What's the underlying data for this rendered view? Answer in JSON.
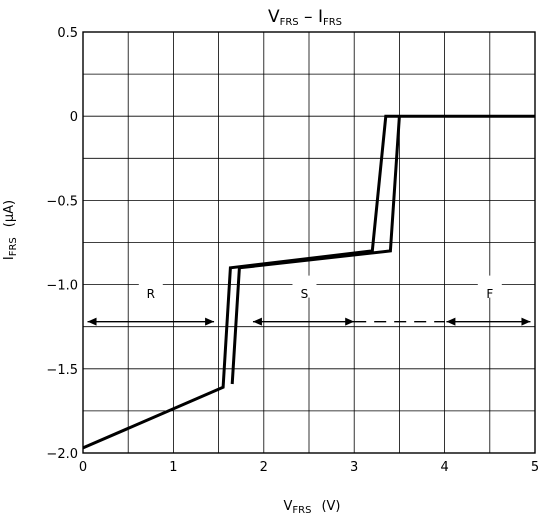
{
  "chart_data": {
    "type": "line",
    "title": {
      "main": "V",
      "main_sub": "FRS",
      "sep": " – I",
      "end_sub": "FRS"
    },
    "xlabel": {
      "main": "V",
      "sub": "FRS",
      "unit": "(V)"
    },
    "ylabel": {
      "main": "I",
      "sub": "FRS",
      "unit": "(µA)"
    },
    "xlim": [
      0,
      5
    ],
    "ylim": [
      -2.0,
      0.5
    ],
    "grid": true,
    "x_ticks": [
      {
        "v": 0,
        "label": "0"
      },
      {
        "v": 1,
        "label": "1"
      },
      {
        "v": 2,
        "label": "2"
      },
      {
        "v": 3,
        "label": "3"
      },
      {
        "v": 4,
        "label": "4"
      },
      {
        "v": 5,
        "label": "5"
      }
    ],
    "y_ticks": [
      {
        "v": 0.5,
        "label": "0.5"
      },
      {
        "v": 0,
        "label": "0"
      },
      {
        "v": -0.5,
        "label": "−0.5"
      },
      {
        "v": -1.0,
        "label": "−1.0"
      },
      {
        "v": -1.5,
        "label": "−1.5"
      },
      {
        "v": -2.0,
        "label": "−2.0"
      }
    ],
    "series": [
      {
        "points": [
          [
            0,
            -1.97
          ],
          [
            1.55,
            -1.61
          ],
          [
            1.63,
            -0.9
          ],
          [
            3.2,
            -0.8
          ],
          [
            3.35,
            0.0
          ],
          [
            5.0,
            0.0
          ]
        ]
      },
      {
        "points": [
          [
            1.65,
            -1.59
          ],
          [
            1.73,
            -0.9
          ],
          [
            3.4,
            -0.8
          ],
          [
            3.5,
            0.0
          ]
        ]
      }
    ],
    "regions": [
      {
        "label": "R",
        "x_from": 0.05,
        "x_to": 1.45,
        "label_x": 0.75,
        "y": -1.22,
        "dashed_from": null,
        "dashed_to": null
      },
      {
        "label": "S",
        "x_from": 1.88,
        "x_to": 3.0,
        "label_x": 2.45,
        "y": -1.22,
        "dashed_from": 3.0,
        "dashed_to": 4.0
      },
      {
        "label": "F",
        "x_from": 4.02,
        "x_to": 4.95,
        "label_x": 4.5,
        "y": -1.22,
        "dashed_from": null,
        "dashed_to": null
      }
    ]
  }
}
